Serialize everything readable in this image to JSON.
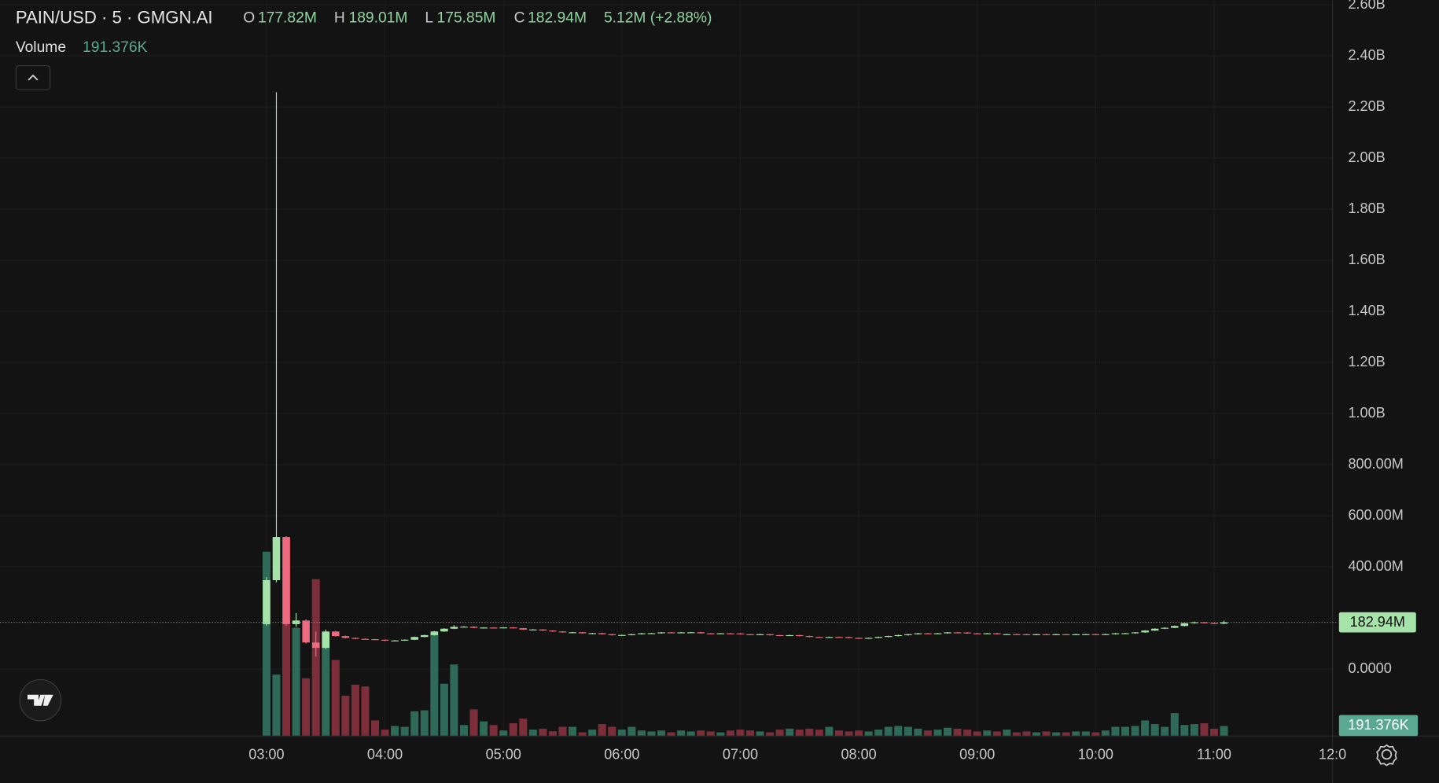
{
  "header": {
    "symbol": "PAIN/USD · 5 · GMGN.AI",
    "open_label": "O",
    "open": "177.82M",
    "high_label": "H",
    "high": "189.01M",
    "low_label": "L",
    "low": "175.85M",
    "close_label": "C",
    "close": "182.94M",
    "change": "5.12M (+2.88%)",
    "volume_label": "Volume",
    "volume_value": "191.376K"
  },
  "chart_data": {
    "type": "candlestick",
    "up_color": "#a6e3a8",
    "down_color": "#ee6a7e",
    "volume_up_color": "#2f6a58",
    "volume_down_color": "#7c2f3a",
    "grid": true,
    "xlim": [
      -27,
      108
    ],
    "xticks": [
      {
        "value": 0,
        "label": "03:00"
      },
      {
        "value": 12,
        "label": "04:00"
      },
      {
        "value": 24,
        "label": "05:00"
      },
      {
        "value": 36,
        "label": "06:00"
      },
      {
        "value": 48,
        "label": "07:00"
      },
      {
        "value": 60,
        "label": "08:00"
      },
      {
        "value": 72,
        "label": "09:00"
      },
      {
        "value": 84,
        "label": "10:00"
      },
      {
        "value": 96,
        "label": "11:00"
      },
      {
        "value": 108,
        "label": "12:0"
      }
    ],
    "ylim": [
      -262,
      2618
    ],
    "yticks": [
      {
        "value": 0,
        "label": "0.0000"
      },
      {
        "value": 400,
        "label": "400.00M"
      },
      {
        "value": 600,
        "label": "600.00M"
      },
      {
        "value": 800,
        "label": "800.00M"
      },
      {
        "value": 1000,
        "label": "1.00B"
      },
      {
        "value": 1200,
        "label": "1.20B"
      },
      {
        "value": 1400,
        "label": "1.40B"
      },
      {
        "value": 1600,
        "label": "1.60B"
      },
      {
        "value": 1800,
        "label": "1.80B"
      },
      {
        "value": 2000,
        "label": "2.00B"
      },
      {
        "value": 2200,
        "label": "2.20B"
      },
      {
        "value": 2400,
        "label": "2.40B"
      },
      {
        "value": 2600,
        "label": "2.60B"
      }
    ],
    "y2lim": [
      0,
      14000
    ],
    "open": [
      176,
      348,
      517,
      176,
      190,
      104,
      83,
      147,
      129,
      122,
      118.5,
      117,
      114.9,
      111.3,
      112,
      114.9,
      125.7,
      132.9,
      147.2,
      158,
      165.2,
      166,
      161.6,
      162.5,
      161.6,
      163,
      160,
      154.4,
      155,
      150.8,
      147.2,
      143.6,
      144,
      140,
      140.5,
      136.4,
      132.9,
      133.5,
      136.4,
      140,
      140.4,
      143.6,
      143,
      143.6,
      144,
      140,
      139.5,
      140,
      139.6,
      136.4,
      136,
      136.4,
      132.9,
      132.5,
      132.9,
      129.3,
      125.7,
      125.2,
      125.7,
      125.3,
      122.1,
      121.8,
      122.1,
      125.7,
      129.3,
      132.9,
      136.4,
      140,
      139.6,
      140,
      143.6,
      143.2,
      140,
      139.6,
      140,
      136.4,
      136.8,
      136.4,
      136,
      136.4,
      136.1,
      136.4,
      136,
      136.4,
      136.7,
      136.4,
      136.8,
      140,
      140.3,
      143.6,
      150.8,
      158,
      161.6,
      168.8,
      179.5,
      183.1,
      180,
      177.82
    ],
    "high": [
      360,
      2258,
      520,
      219,
      195,
      147,
      155,
      150,
      131,
      124,
      120,
      118.5,
      116,
      113.5,
      116.5,
      127,
      134.5,
      149,
      160,
      172,
      168,
      167,
      164,
      164,
      164.5,
      164,
      161,
      156.5,
      156,
      152,
      148.5,
      145.5,
      145,
      142,
      142,
      138,
      135,
      138,
      141.5,
      142,
      145,
      144.5,
      145,
      145.5,
      145.5,
      141,
      141.5,
      141.5,
      141,
      137.5,
      138,
      138,
      134,
      134.5,
      134,
      131,
      127,
      127,
      127,
      127,
      123.5,
      123.5,
      127,
      131,
      134.5,
      138,
      141.5,
      141.5,
      141.5,
      145,
      145,
      145,
      141.5,
      141.5,
      141.5,
      138,
      138.5,
      138,
      138,
      138,
      138,
      138,
      138,
      138,
      138,
      138.5,
      141.5,
      142,
      145,
      152.5,
      159.5,
      163,
      170.5,
      181,
      186,
      184,
      181.5,
      189.01
    ],
    "low": [
      170,
      340,
      170,
      165,
      100,
      50,
      78,
      127,
      120,
      116.5,
      115,
      113,
      109.5,
      110,
      110.5,
      113.5,
      124,
      131,
      145.5,
      156.5,
      163.5,
      160,
      160,
      160,
      160,
      158.5,
      153,
      153,
      149,
      145.5,
      142,
      142,
      138.5,
      138.5,
      135,
      131,
      131.5,
      132,
      135,
      138.5,
      139,
      141.5,
      141.5,
      142,
      138.5,
      138,
      138,
      138,
      135,
      134.5,
      134.5,
      131,
      131,
      131,
      127.5,
      124,
      123.5,
      123.5,
      123.5,
      120.5,
      120,
      120,
      120.5,
      124,
      127.5,
      131,
      135,
      138,
      138,
      138.5,
      141.5,
      138.5,
      138,
      138,
      135,
      135,
      135,
      134.5,
      134.5,
      134.5,
      134.5,
      134.5,
      134.5,
      135,
      135,
      135,
      135,
      138.5,
      138.5,
      142,
      149,
      156.5,
      160,
      167,
      178,
      178.5,
      176,
      175.85
    ],
    "close": [
      348,
      517,
      176,
      190,
      104,
      83,
      147,
      129,
      122,
      118.5,
      117,
      114.9,
      111.3,
      112,
      114.9,
      125.7,
      132.9,
      147.2,
      158,
      165.2,
      166,
      161.6,
      162.5,
      161.6,
      163,
      160,
      154.4,
      155,
      150.8,
      147.2,
      143.6,
      144,
      140,
      140.5,
      136.4,
      132.9,
      133.5,
      136.4,
      140,
      140.4,
      143.6,
      143,
      143.6,
      144,
      140,
      139.5,
      140,
      139.6,
      136.4,
      136,
      136.4,
      132.9,
      132.5,
      132.9,
      129.3,
      125.7,
      125.2,
      125.7,
      125.3,
      122.1,
      121.8,
      122.1,
      125.7,
      129.3,
      132.9,
      136.4,
      140,
      139.6,
      140,
      143.6,
      143.2,
      140,
      139.6,
      140,
      136.4,
      136.8,
      136.4,
      136,
      136.4,
      136.1,
      136.4,
      136,
      136.4,
      136.7,
      136.4,
      136.8,
      140,
      140.3,
      143.6,
      150.8,
      158,
      161.6,
      168.8,
      179.5,
      183.1,
      180,
      177.82,
      182.94
    ],
    "volume": [
      3508,
      1169,
      3787,
      2059,
      1099,
      2984,
      1972,
      1448,
      768,
      977,
      942,
      297,
      122,
      192,
      175,
      471,
      489,
      1954,
      995,
      1361,
      209,
      506,
      279,
      209,
      105,
      244,
      332,
      122,
      140,
      90,
      175,
      175,
      70,
      122,
      227,
      175,
      122,
      175,
      105,
      87,
      105,
      70,
      105,
      87,
      105,
      87,
      70,
      105,
      122,
      105,
      87,
      70,
      122,
      140,
      122,
      140,
      122,
      175,
      105,
      87,
      105,
      87,
      122,
      175,
      192,
      175,
      140,
      105,
      122,
      157,
      140,
      122,
      87,
      105,
      87,
      122,
      70,
      87,
      70,
      87,
      70,
      70,
      87,
      87,
      70,
      105,
      175,
      175,
      192,
      296,
      227,
      175,
      436,
      210,
      227,
      244,
      140,
      191.376
    ],
    "last_price_label": "182.94M",
    "last_volume_label": "191.376K"
  }
}
